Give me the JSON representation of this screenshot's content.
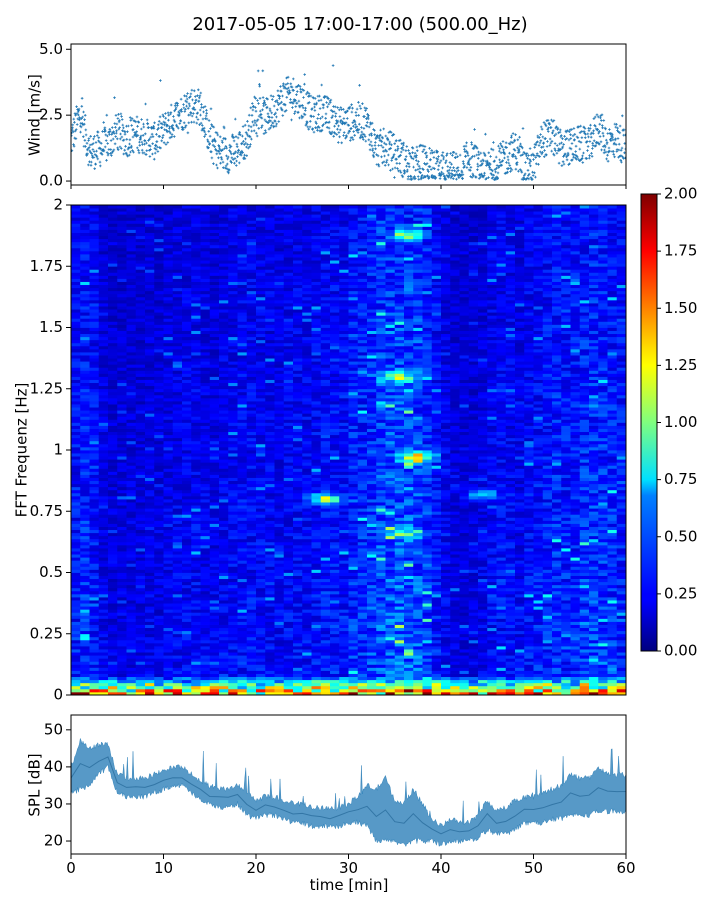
{
  "title": "2017-05-05 17:00-17:00 (500.00_Hz)",
  "chart_data": [
    {
      "type": "scatter",
      "panel": "wind",
      "xlabel": "",
      "ylabel": "Wind [m/s]",
      "xlim": [
        0,
        60
      ],
      "ylim": [
        -0.15,
        5.2
      ],
      "yticks": [
        "0.0",
        "2.5",
        "5.0"
      ],
      "yticks_values": [
        0,
        2.5,
        5.0
      ],
      "marker": "+",
      "color": "#1f77b4",
      "trend": [
        {
          "x": 0,
          "y": 1.5
        },
        {
          "x": 1,
          "y": 2.6
        },
        {
          "x": 2,
          "y": 1.1
        },
        {
          "x": 3,
          "y": 1.2
        },
        {
          "x": 4,
          "y": 1.4
        },
        {
          "x": 5,
          "y": 1.9
        },
        {
          "x": 6,
          "y": 1.6
        },
        {
          "x": 7,
          "y": 1.8
        },
        {
          "x": 8,
          "y": 1.7
        },
        {
          "x": 9,
          "y": 1.5
        },
        {
          "x": 10,
          "y": 1.9
        },
        {
          "x": 11,
          "y": 2.3
        },
        {
          "x": 12,
          "y": 2.6
        },
        {
          "x": 13,
          "y": 2.9
        },
        {
          "x": 14,
          "y": 2.8
        },
        {
          "x": 15,
          "y": 1.6
        },
        {
          "x": 16,
          "y": 1.1
        },
        {
          "x": 17,
          "y": 1.0
        },
        {
          "x": 18,
          "y": 1.2
        },
        {
          "x": 19,
          "y": 1.6
        },
        {
          "x": 20,
          "y": 2.8
        },
        {
          "x": 21,
          "y": 2.4
        },
        {
          "x": 22,
          "y": 2.7
        },
        {
          "x": 23,
          "y": 3.2
        },
        {
          "x": 24,
          "y": 3.3
        },
        {
          "x": 25,
          "y": 3.0
        },
        {
          "x": 26,
          "y": 2.5
        },
        {
          "x": 27,
          "y": 2.6
        },
        {
          "x": 28,
          "y": 2.5
        },
        {
          "x": 29,
          "y": 2.1
        },
        {
          "x": 30,
          "y": 2.2
        },
        {
          "x": 31,
          "y": 2.3
        },
        {
          "x": 32,
          "y": 2.2
        },
        {
          "x": 33,
          "y": 1.2
        },
        {
          "x": 34,
          "y": 1.3
        },
        {
          "x": 35,
          "y": 1.1
        },
        {
          "x": 36,
          "y": 0.8
        },
        {
          "x": 37,
          "y": 0.6
        },
        {
          "x": 38,
          "y": 0.7
        },
        {
          "x": 39,
          "y": 0.5
        },
        {
          "x": 40,
          "y": 0.4
        },
        {
          "x": 41,
          "y": 0.5
        },
        {
          "x": 42,
          "y": 0.3
        },
        {
          "x": 43,
          "y": 0.9
        },
        {
          "x": 44,
          "y": 0.6
        },
        {
          "x": 45,
          "y": 0.5
        },
        {
          "x": 46,
          "y": 0.6
        },
        {
          "x": 47,
          "y": 0.9
        },
        {
          "x": 48,
          "y": 1.2
        },
        {
          "x": 49,
          "y": 0.5
        },
        {
          "x": 50,
          "y": 0.6
        },
        {
          "x": 51,
          "y": 1.6
        },
        {
          "x": 52,
          "y": 1.7
        },
        {
          "x": 53,
          "y": 1.2
        },
        {
          "x": 54,
          "y": 1.3
        },
        {
          "x": 55,
          "y": 1.4
        },
        {
          "x": 56,
          "y": 1.3
        },
        {
          "x": 57,
          "y": 2.1
        },
        {
          "x": 58,
          "y": 1.4
        },
        {
          "x": 59,
          "y": 1.6
        },
        {
          "x": 60,
          "y": 1.2
        }
      ]
    },
    {
      "type": "heatmap",
      "panel": "spectrogram",
      "xlabel": "",
      "ylabel": "FFT Frequenz [Hz]",
      "xlim": [
        0,
        60
      ],
      "ylim": [
        0,
        2
      ],
      "yticks": [
        "0",
        "0.25",
        "0.5",
        "0.75",
        "1",
        "1.25",
        "1.5",
        "1.75",
        "2"
      ],
      "yticks_values": [
        0,
        0.25,
        0.5,
        0.75,
        1,
        1.25,
        1.5,
        1.75,
        2
      ],
      "colormap": "jet",
      "clim": [
        0,
        2
      ],
      "colorbar_ticks": [
        "0.00",
        "0.25",
        "0.50",
        "0.75",
        "1.00",
        "1.25",
        "1.50",
        "1.75",
        "2.00"
      ],
      "colorbar_values": [
        0,
        0.25,
        0.5,
        0.75,
        1,
        1.25,
        1.5,
        1.75,
        2
      ],
      "column_intensity": [
        0.3,
        0.34,
        0.3,
        0.22,
        0.2,
        0.2,
        0.21,
        0.2,
        0.22,
        0.21,
        0.23,
        0.24,
        0.25,
        0.26,
        0.24,
        0.22,
        0.25,
        0.26,
        0.28,
        0.27,
        0.26,
        0.25,
        0.24,
        0.26,
        0.27,
        0.26,
        0.28,
        0.29,
        0.3,
        0.29,
        0.34,
        0.35,
        0.38,
        0.42,
        0.44,
        0.45,
        0.44,
        0.42,
        0.38,
        0.3,
        0.24,
        0.2,
        0.19,
        0.2,
        0.22,
        0.26,
        0.28,
        0.26,
        0.24,
        0.28,
        0.3,
        0.32,
        0.34,
        0.32,
        0.33,
        0.36,
        0.38,
        0.36,
        0.34,
        0.32
      ],
      "low_freq_band": {
        "freq_range": [
          0,
          0.08
        ],
        "peak_level": 1.8
      },
      "hotspots": [
        {
          "t": 27.5,
          "f": 0.8,
          "level": 1.1
        },
        {
          "t": 37.5,
          "f": 0.97,
          "level": 1.3
        },
        {
          "t": 35.5,
          "f": 1.3,
          "level": 0.85
        },
        {
          "t": 36.5,
          "f": 1.88,
          "level": 0.9
        },
        {
          "t": 36.0,
          "f": 0.66,
          "level": 0.7
        },
        {
          "t": 44.5,
          "f": 0.82,
          "level": 0.6
        }
      ]
    },
    {
      "type": "area",
      "panel": "spl",
      "xlabel": "time [min]",
      "ylabel": "SPL [dB]",
      "xlim": [
        0,
        60
      ],
      "ylim": [
        16.5,
        54
      ],
      "yticks": [
        "20",
        "30",
        "40",
        "50"
      ],
      "yticks_values": [
        20,
        30,
        40,
        50
      ],
      "xticks": [
        "0",
        "10",
        "20",
        "30",
        "40",
        "50",
        "60"
      ],
      "xticks_values": [
        0,
        10,
        20,
        30,
        40,
        50,
        60
      ],
      "color": "#1f77b4",
      "x": [
        0,
        1,
        2,
        3,
        4,
        5,
        6,
        7,
        8,
        9,
        10,
        11,
        12,
        13,
        14,
        15,
        16,
        17,
        18,
        19,
        20,
        21,
        22,
        23,
        24,
        25,
        26,
        27,
        28,
        29,
        30,
        31,
        32,
        33,
        34,
        35,
        36,
        37,
        38,
        39,
        40,
        41,
        42,
        43,
        44,
        45,
        46,
        47,
        48,
        49,
        50,
        51,
        52,
        53,
        54,
        55,
        56,
        57,
        58,
        59,
        60
      ],
      "lower": [
        33,
        34,
        35,
        38,
        40,
        33,
        32,
        32,
        32,
        33,
        34,
        35,
        35,
        33,
        31,
        30,
        29,
        29,
        30,
        27,
        26,
        27,
        27,
        26,
        25,
        25,
        24,
        24,
        24,
        24,
        25,
        25,
        24,
        20,
        20,
        20,
        19,
        20,
        20,
        20,
        19,
        20,
        20,
        20,
        21,
        23,
        22,
        22,
        23,
        25,
        25,
        25,
        26,
        26,
        27,
        27,
        27,
        28,
        28,
        28,
        28
      ],
      "upper": [
        40,
        47,
        45,
        46,
        46,
        38,
        37,
        37,
        37,
        38,
        39,
        40,
        40,
        38,
        36,
        35,
        34,
        34,
        35,
        33,
        31,
        32,
        32,
        31,
        30,
        30,
        29,
        29,
        29,
        29,
        30,
        32,
        35,
        34,
        37,
        31,
        30,
        34,
        30,
        26,
        24,
        26,
        25,
        25,
        27,
        31,
        28,
        29,
        31,
        32,
        32,
        33,
        34,
        35,
        38,
        37,
        37,
        40,
        38,
        38,
        38
      ]
    }
  ]
}
